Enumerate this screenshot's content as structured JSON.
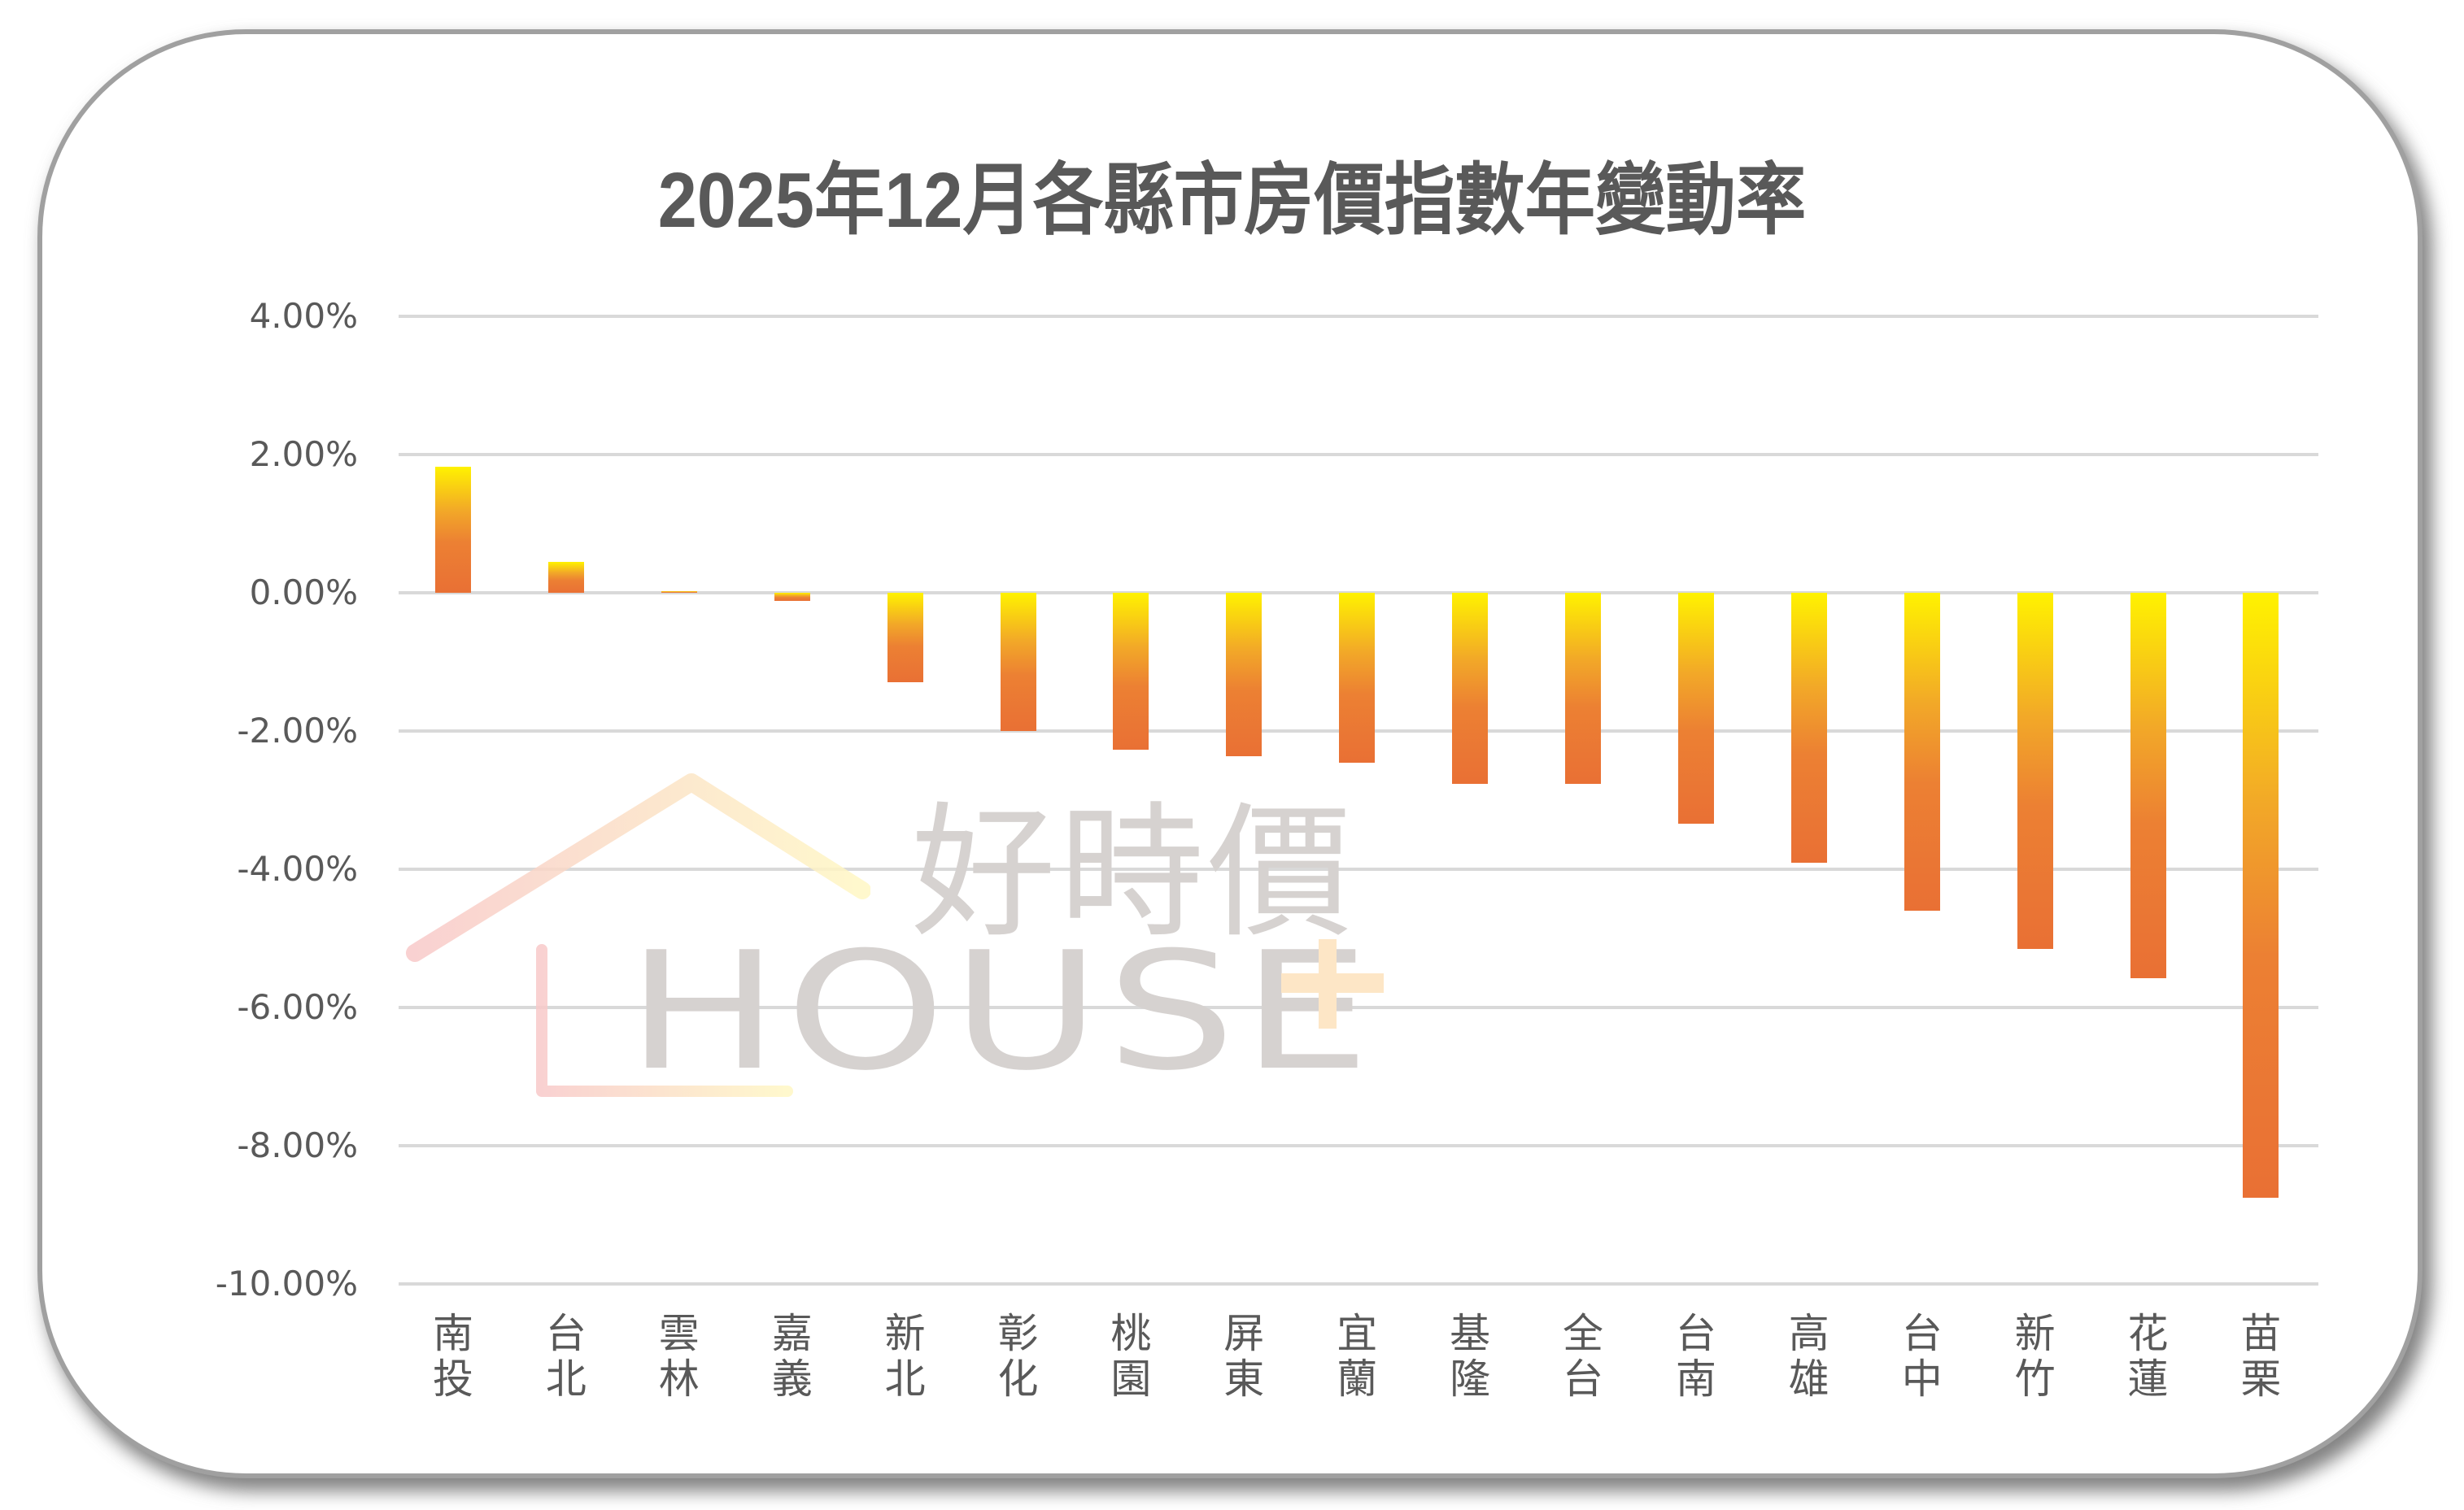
{
  "title": "2025年12月各縣市房價指數年變動率",
  "watermark": {
    "brand_zh": "好時價",
    "brand_en": "HOUSE",
    "plus_icon": "plus-icon",
    "house_icon": "house-outline-icon"
  },
  "colors": {
    "bar_gradient_top": "#FFF200",
    "bar_gradient_bottom": "#E97034",
    "grid": "#D9D9D9",
    "text": "#595959",
    "watermark_text": "#D6D2D0"
  },
  "y_axis": {
    "ticks": [
      "4.00%",
      "2.00%",
      "0.00%",
      "-2.00%",
      "-4.00%",
      "-6.00%",
      "-8.00%",
      "-10.00%"
    ]
  },
  "x_axis": {
    "labels": [
      [
        "南",
        "投"
      ],
      [
        "台",
        "北"
      ],
      [
        "雲",
        "林"
      ],
      [
        "嘉",
        "義"
      ],
      [
        "新",
        "北"
      ],
      [
        "彰",
        "化"
      ],
      [
        "桃",
        "園"
      ],
      [
        "屏",
        "東"
      ],
      [
        "宜",
        "蘭"
      ],
      [
        "基",
        "隆"
      ],
      [
        "全",
        "台"
      ],
      [
        "台",
        "南"
      ],
      [
        "高",
        "雄"
      ],
      [
        "台",
        "中"
      ],
      [
        "新",
        "竹"
      ],
      [
        "花",
        "蓮"
      ],
      [
        "苗",
        "栗"
      ]
    ]
  },
  "chart_data": {
    "type": "bar",
    "title": "2025年12月各縣市房價指數年變動率",
    "xlabel": "",
    "ylabel": "",
    "categories": [
      "南投",
      "台北",
      "雲林",
      "嘉義",
      "新北",
      "彰化",
      "桃園",
      "屏東",
      "宜蘭",
      "基隆",
      "全台",
      "台南",
      "高雄",
      "台中",
      "新竹",
      "花蓮",
      "苗栗"
    ],
    "values": [
      1.82,
      0.45,
      0.02,
      -0.12,
      -1.29,
      -2.0,
      -2.27,
      -2.37,
      -2.46,
      -2.76,
      -2.77,
      -3.34,
      -3.91,
      -4.6,
      -5.15,
      -5.58,
      -8.75
    ],
    "unit": "%",
    "ylim": [
      -10,
      4
    ],
    "ytick_step": 2,
    "grid": true,
    "legend": null
  }
}
